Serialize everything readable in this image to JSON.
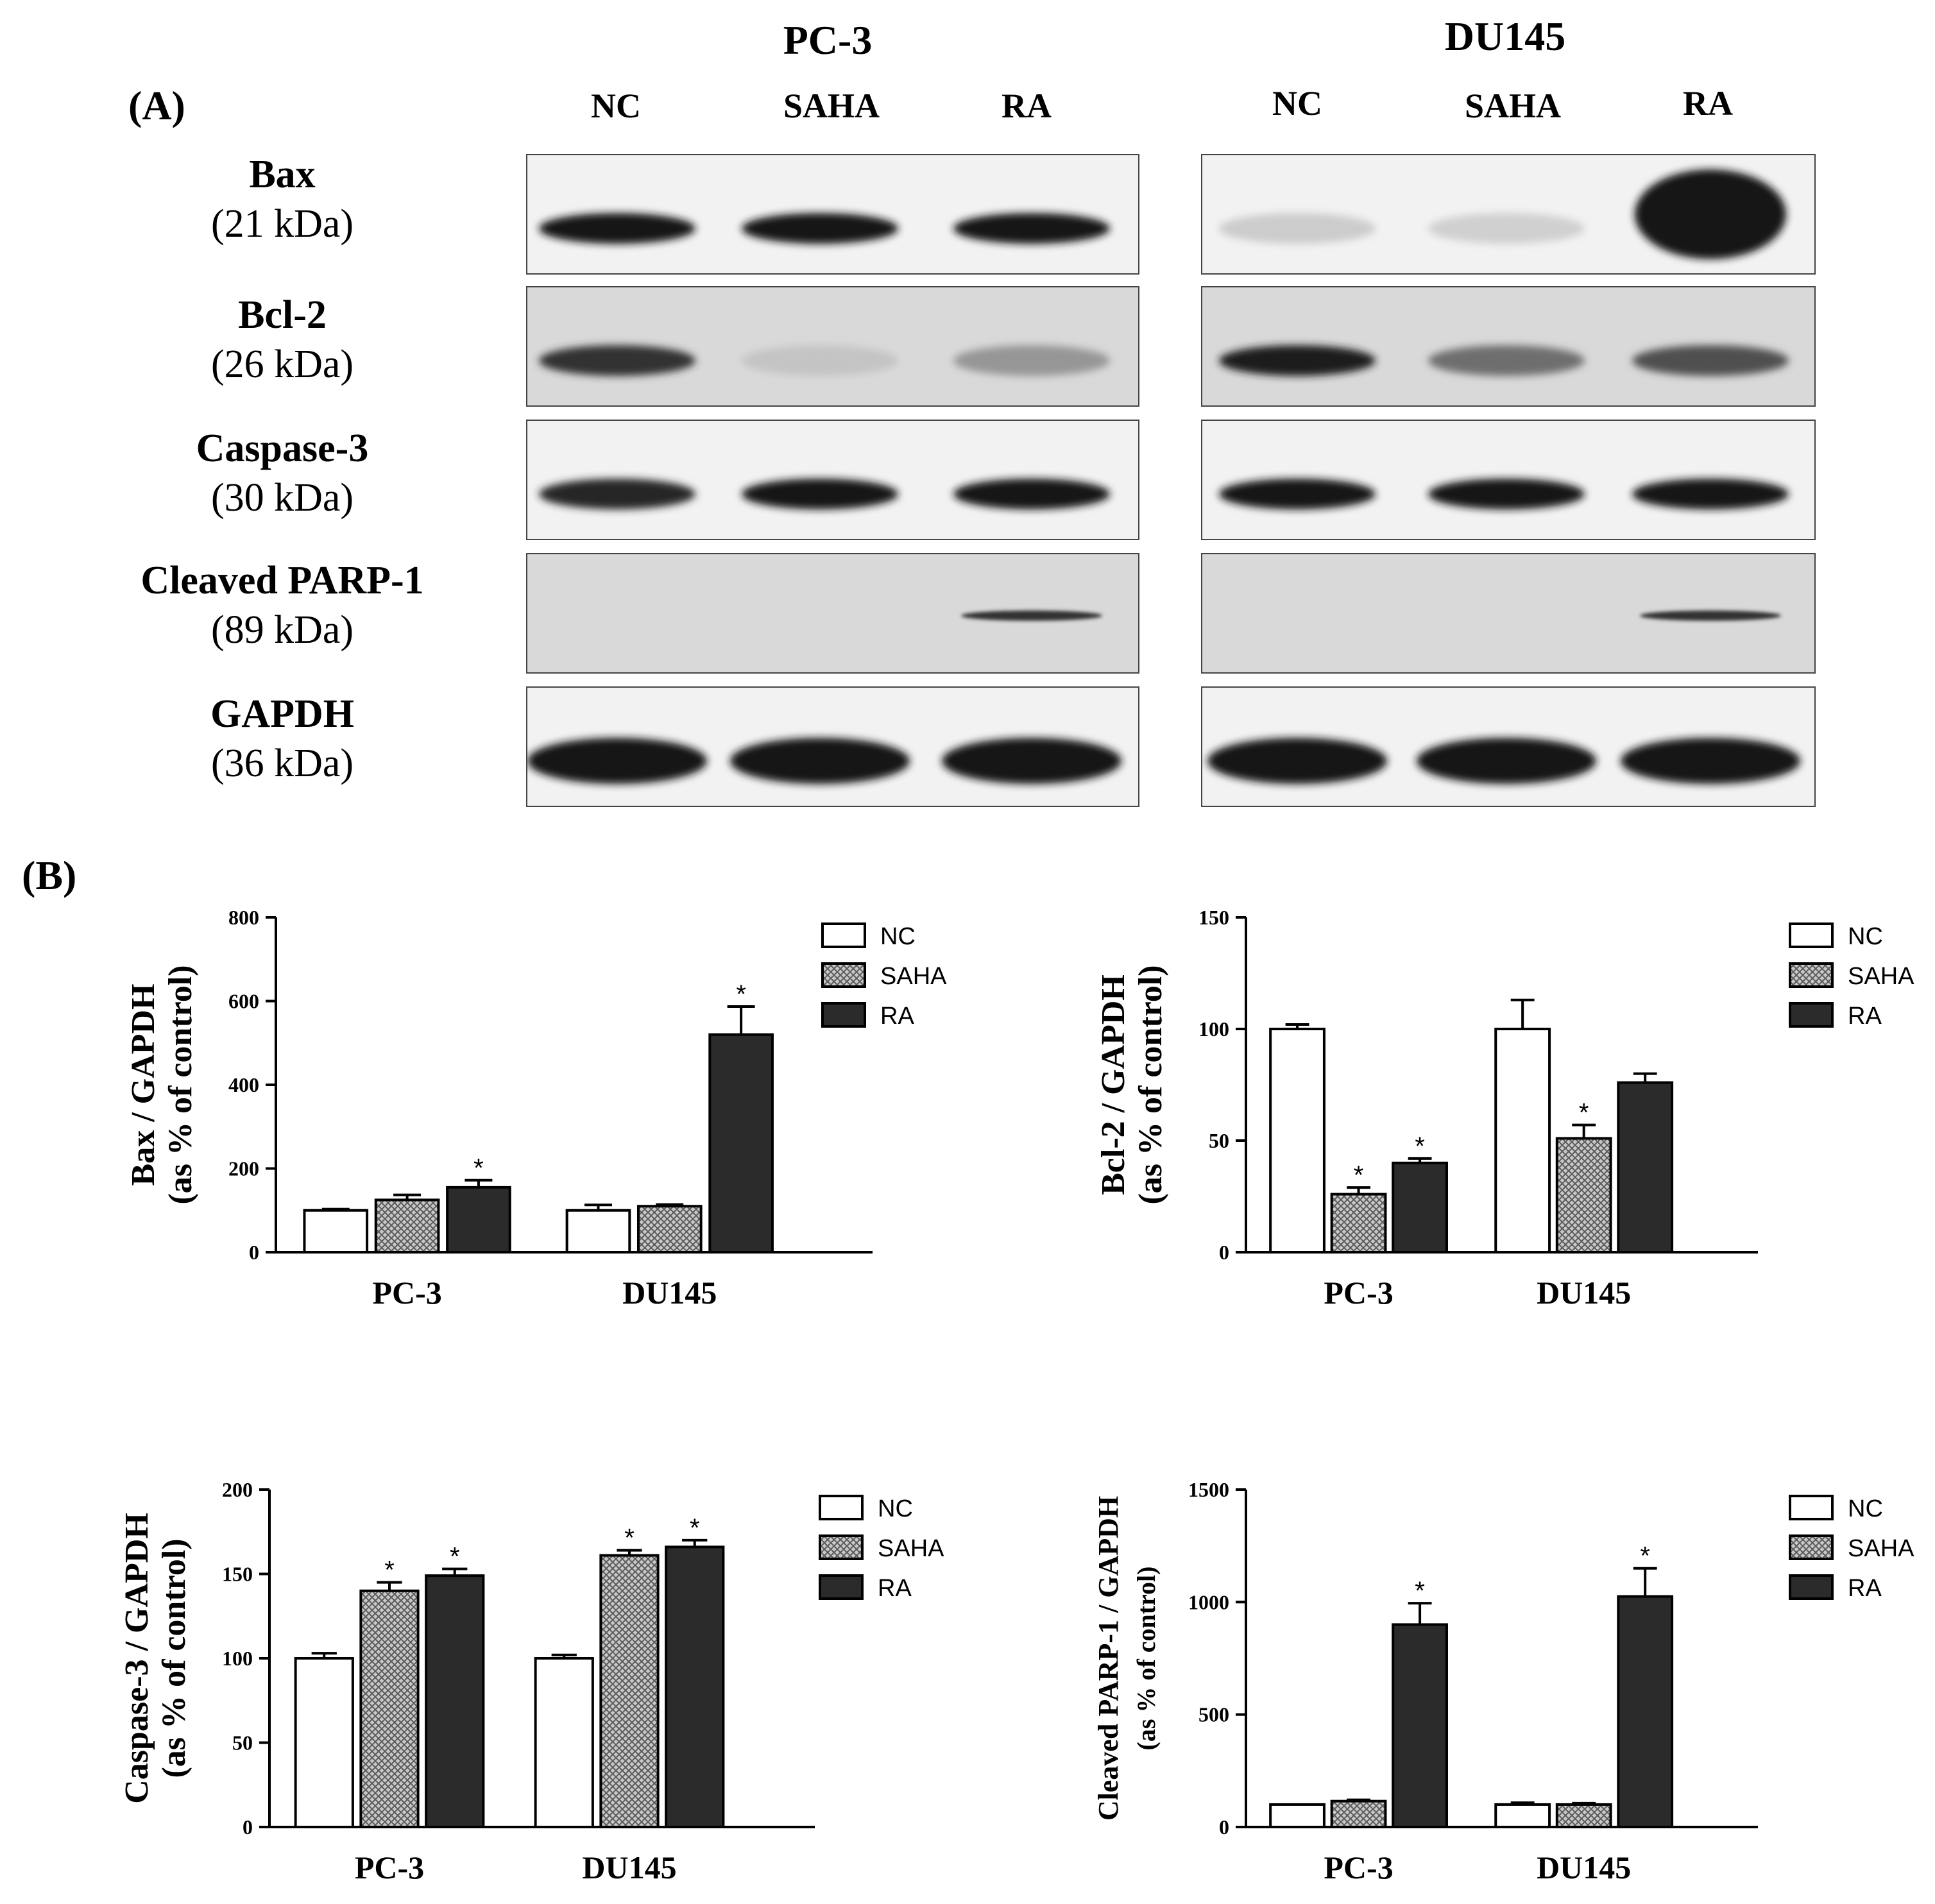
{
  "panel_a": {
    "label": "(A)",
    "cell_lines": [
      {
        "name": "PC-3",
        "lanes": [
          "NC",
          "SAHA",
          "RA"
        ]
      },
      {
        "name": "DU145",
        "lanes": [
          "NC",
          "SAHA",
          "RA"
        ]
      }
    ],
    "proteins": [
      {
        "name": "Bax",
        "kda": "(21 kDa)"
      },
      {
        "name": "Bcl-2",
        "kda": "(26 kDa)"
      },
      {
        "name": "Caspase-3",
        "kda": "(30 kDa)"
      },
      {
        "name": "Cleaved PARP-1",
        "kda": "(89 kDa)"
      },
      {
        "name": "GAPDH",
        "kda": "(36 kDa)"
      }
    ],
    "band_intensity": {
      "PC-3": [
        [
          1.0,
          1.0,
          1.0
        ],
        [
          0.85,
          0.12,
          0.35
        ],
        [
          0.9,
          1.0,
          1.0
        ],
        [
          0.0,
          0.0,
          0.85
        ],
        [
          1.0,
          1.0,
          1.0
        ]
      ],
      "DU145": [
        [
          0.08,
          0.06,
          1.0
        ],
        [
          0.95,
          0.55,
          0.7
        ],
        [
          1.0,
          1.0,
          1.0
        ],
        [
          0.0,
          0.0,
          0.85
        ],
        [
          1.0,
          1.0,
          1.0
        ]
      ]
    }
  },
  "panel_b": {
    "label": "(B)"
  },
  "colors": {
    "nc": "#ffffff",
    "saha": "#9a9a9a",
    "ra": "#2b2b2b",
    "axis": "#000000"
  },
  "chart_data": [
    {
      "type": "bar",
      "categories": [
        "PC-3",
        "DU145"
      ],
      "ylabel_lines": [
        "Bax / GAPDH",
        "(as % of control)"
      ],
      "ylim": [
        0,
        800
      ],
      "yticks": [
        0,
        200,
        400,
        600,
        800
      ],
      "series": [
        {
          "name": "NC",
          "values": [
            100,
            100
          ],
          "errors": [
            3,
            13
          ],
          "sig": [
            false,
            false
          ]
        },
        {
          "name": "SAHA",
          "values": [
            125,
            110
          ],
          "errors": [
            12,
            4
          ],
          "sig": [
            false,
            false
          ]
        },
        {
          "name": "RA",
          "values": [
            155,
            520
          ],
          "errors": [
            17,
            67
          ],
          "sig": [
            true,
            true
          ]
        }
      ],
      "legend": [
        "NC",
        "SAHA",
        "RA"
      ]
    },
    {
      "type": "bar",
      "categories": [
        "PC-3",
        "DU145"
      ],
      "ylabel_lines": [
        "Bcl-2 / GAPDH",
        "(as % of control)"
      ],
      "ylim": [
        0,
        150
      ],
      "yticks": [
        0,
        50,
        100,
        150
      ],
      "series": [
        {
          "name": "NC",
          "values": [
            100,
            100
          ],
          "errors": [
            2,
            13
          ],
          "sig": [
            false,
            false
          ]
        },
        {
          "name": "SAHA",
          "values": [
            26,
            51
          ],
          "errors": [
            3,
            6
          ],
          "sig": [
            true,
            true
          ]
        },
        {
          "name": "RA",
          "values": [
            40,
            76
          ],
          "errors": [
            2,
            4
          ],
          "sig": [
            true,
            false
          ]
        }
      ],
      "legend": [
        "NC",
        "SAHA",
        "RA"
      ]
    },
    {
      "type": "bar",
      "categories": [
        "PC-3",
        "DU145"
      ],
      "ylabel_lines": [
        "Caspase-3 / GAPDH",
        "(as % of control)"
      ],
      "ylim": [
        0,
        200
      ],
      "yticks": [
        0,
        50,
        100,
        150,
        200
      ],
      "series": [
        {
          "name": "NC",
          "values": [
            100,
            100
          ],
          "errors": [
            3,
            2
          ],
          "sig": [
            false,
            false
          ]
        },
        {
          "name": "SAHA",
          "values": [
            140,
            161
          ],
          "errors": [
            5,
            3
          ],
          "sig": [
            true,
            true
          ]
        },
        {
          "name": "RA",
          "values": [
            149,
            166
          ],
          "errors": [
            4,
            4
          ],
          "sig": [
            true,
            true
          ]
        }
      ],
      "legend": [
        "NC",
        "SAHA",
        "RA"
      ]
    },
    {
      "type": "bar",
      "categories": [
        "PC-3",
        "DU145"
      ],
      "ylabel_lines": [
        "Cleaved PARP-1 / GAPDH",
        "(as % of control)"
      ],
      "ylim": [
        0,
        1500
      ],
      "yticks": [
        0,
        500,
        1000,
        1500
      ],
      "series": [
        {
          "name": "NC",
          "values": [
            100,
            100
          ],
          "errors": [
            0,
            8
          ],
          "sig": [
            false,
            false
          ]
        },
        {
          "name": "SAHA",
          "values": [
            115,
            100
          ],
          "errors": [
            6,
            6
          ],
          "sig": [
            false,
            false
          ]
        },
        {
          "name": "RA",
          "values": [
            900,
            1025
          ],
          "errors": [
            95,
            125
          ],
          "sig": [
            true,
            true
          ]
        }
      ],
      "legend": [
        "NC",
        "SAHA",
        "RA"
      ]
    }
  ]
}
